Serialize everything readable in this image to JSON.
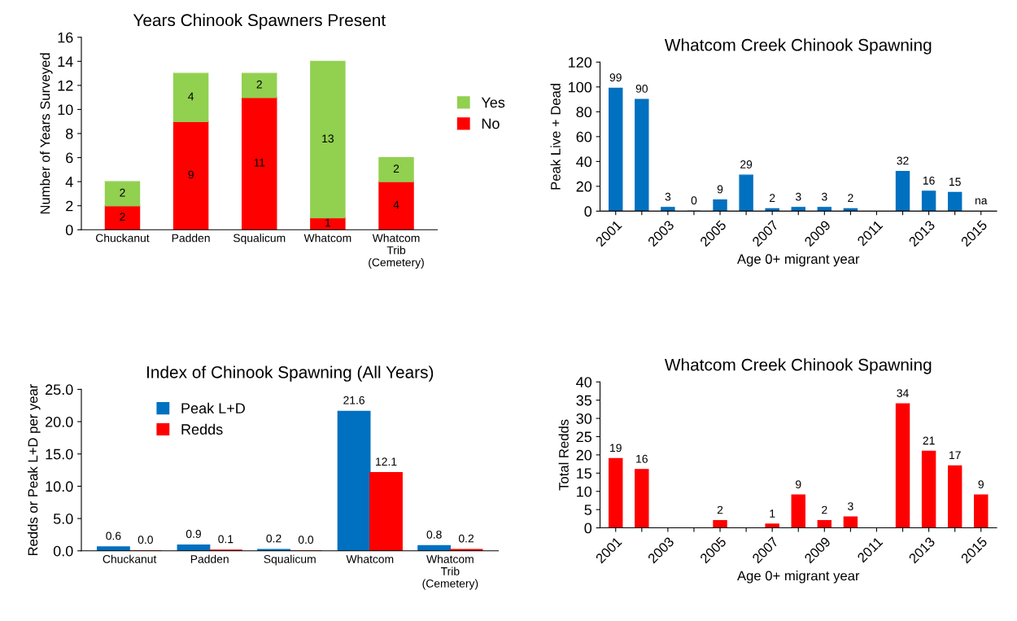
{
  "chart_data": [
    {
      "type": "bar",
      "title": "Years Chinook Spawners Present",
      "ylabel": "Number of Years Surveyed",
      "categories": [
        "Chuckanut",
        "Padden",
        "Squalicum",
        "Whatcom",
        "Whatcom\nTrib\n(Cemetery)"
      ],
      "stacked": true,
      "data_labels": true,
      "legend": "right",
      "ylim": [
        0,
        16
      ],
      "yticks": [
        0,
        2,
        4,
        6,
        8,
        10,
        12,
        14,
        16
      ],
      "series": [
        {
          "name": "No",
          "color": "#ff0000",
          "values": [
            2,
            9,
            11,
            1,
            4
          ]
        },
        {
          "name": "Yes",
          "color": "#92d050",
          "values": [
            2,
            4,
            2,
            13,
            2
          ]
        }
      ]
    },
    {
      "type": "bar",
      "title": "Whatcom Creek Chinook Spawning",
      "ylabel": "Peak Live + Dead",
      "xlabel": "Age 0+ migrant year",
      "categories": [
        "2001",
        null,
        "2003",
        null,
        "2005",
        null,
        "2007",
        null,
        "2009",
        null,
        "2011",
        null,
        "2013",
        null,
        "2015"
      ],
      "ylim": [
        0,
        120
      ],
      "yticks": [
        0,
        20,
        40,
        60,
        80,
        100,
        120
      ],
      "series": [
        {
          "color": "#0070c0",
          "values": [
            99,
            90,
            3,
            0,
            9,
            29,
            2,
            3,
            3,
            2,
            null,
            32,
            16,
            15,
            null
          ],
          "value_labels": [
            "99",
            "90",
            "3",
            "0",
            "9",
            "29",
            "2",
            "3",
            "3",
            "2",
            null,
            "32",
            "16",
            "15",
            "na"
          ]
        }
      ]
    },
    {
      "type": "bar",
      "title": "Index of Chinook Spawning (All Years)",
      "ylabel": "Redds or Peak L+D per year",
      "categories": [
        "Chuckanut",
        "Padden",
        "Squalicum",
        "Whatcom",
        "Whatcom\nTrib\n(Cemetery)"
      ],
      "legend": "top left",
      "ylim": [
        0,
        25
      ],
      "yticks": [
        {
          "value": 0,
          "label": "0.0"
        },
        {
          "value": 5,
          "label": "5.0"
        },
        {
          "value": 10,
          "label": "10.0"
        },
        {
          "value": 15,
          "label": "15.0"
        },
        {
          "value": 20,
          "label": "20.0"
        },
        {
          "value": 25,
          "label": "25.0"
        }
      ],
      "series": [
        {
          "name": "Peak L+D",
          "color": "#0070c0",
          "values": [
            0.6,
            0.9,
            0.2,
            21.6,
            0.8
          ],
          "value_labels": [
            "0.6",
            "0.9",
            "0.2",
            "21.6",
            "0.8"
          ]
        },
        {
          "name": "Redds",
          "color": "#ff0000",
          "values": [
            0.0,
            0.1,
            0.0,
            12.1,
            0.2
          ],
          "value_labels": [
            "0.0",
            "0.1",
            "0.0",
            "12.1",
            "0.2"
          ]
        }
      ]
    },
    {
      "type": "bar",
      "title": "Whatcom Creek Chinook Spawning",
      "ylabel": "Total Redds",
      "xlabel": "Age 0+ migrant year",
      "categories": [
        "2001",
        null,
        "2003",
        null,
        "2005",
        null,
        "2007",
        null,
        "2009",
        null,
        "2011",
        null,
        "2013",
        null,
        "2015"
      ],
      "data_labels": true,
      "ylim": [
        0,
        40
      ],
      "yticks": [
        0,
        5,
        10,
        15,
        20,
        25,
        30,
        35,
        40
      ],
      "series": [
        {
          "color": "#ff0000",
          "values": [
            19,
            16,
            null,
            null,
            2,
            null,
            1,
            9,
            2,
            3,
            null,
            34,
            21,
            17,
            9
          ]
        }
      ]
    }
  ]
}
